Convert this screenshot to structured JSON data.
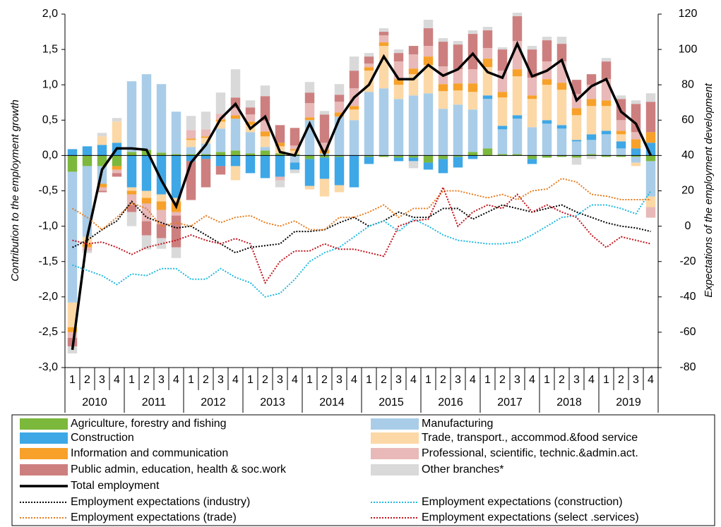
{
  "chart_data": {
    "type": "bar",
    "y_axis_label": "Contribution to the employment growth",
    "y2_axis_label": "Expectations of the employment development",
    "categories": [
      "1",
      "2",
      "3",
      "4",
      "1",
      "2",
      "3",
      "4",
      "1",
      "2",
      "3",
      "4",
      "1",
      "2",
      "3",
      "4",
      "1",
      "2",
      "3",
      "4",
      "1",
      "2",
      "3",
      "4",
      "1",
      "2",
      "3",
      "4",
      "1",
      "2",
      "3",
      "4",
      "1",
      "2",
      "3",
      "4",
      "1",
      "2",
      "3",
      "4"
    ],
    "groups": [
      "2010",
      "2011",
      "2012",
      "2013",
      "2014",
      "2015",
      "2016",
      "2017",
      "2018",
      "2019"
    ],
    "ylim": [
      -3,
      2
    ],
    "yticks": [
      {
        "value": -3,
        "label": "-3,0"
      },
      {
        "value": -2.5,
        "label": "-2,5"
      },
      {
        "value": -2,
        "label": "-2,0"
      },
      {
        "value": -1.5,
        "label": "-1,5"
      },
      {
        "value": -1,
        "label": "-1,0"
      },
      {
        "value": -0.5,
        "label": "-0,5"
      },
      {
        "value": 0,
        "label": "0,0"
      },
      {
        "value": 0.5,
        "label": "0,5"
      },
      {
        "value": 1,
        "label": "1,0"
      },
      {
        "value": 1.5,
        "label": "1,5"
      },
      {
        "value": 2,
        "label": "2,0"
      }
    ],
    "y2lim": [
      -80,
      120
    ],
    "y2ticks": [
      -80,
      -60,
      -40,
      -20,
      0,
      20,
      40,
      60,
      80,
      100,
      120
    ],
    "series": [
      {
        "name": "Agriculture, forestry and fishing",
        "type": "bar",
        "color": "#7cb83c",
        "values": [
          -0.23,
          -0.15,
          -0.15,
          -0.15,
          0.05,
          0.08,
          0.04,
          0.02,
          0.02,
          0.02,
          0.05,
          0.07,
          0.03,
          0.07,
          0.03,
          0.02,
          -0.05,
          -0.03,
          -0.02,
          0,
          -0.02,
          -0.02,
          -0.03,
          -0.03,
          -0.1,
          -0.05,
          -0.02,
          0.05,
          0.1,
          0.02,
          0.02,
          -0.05,
          -0.03,
          -0.02,
          -0.03,
          0.02,
          -0.02,
          -0.02,
          -0.02,
          -0.08
        ]
      },
      {
        "name": "Manufacturing",
        "type": "bar",
        "color": "#a9cde8",
        "values": [
          -1.85,
          -1,
          -0.25,
          0,
          1,
          1.07,
          0.97,
          0.6,
          0.1,
          0.15,
          0.33,
          0.45,
          0.3,
          0.05,
          0,
          -0.1,
          0.5,
          0.03,
          0.55,
          0.5,
          0.9,
          0.95,
          0.8,
          0.85,
          0.88,
          0.66,
          0.72,
          0.6,
          0.7,
          0.35,
          0.5,
          0.4,
          0.45,
          0.38,
          0.2,
          0.2,
          0.3,
          0.1,
          -0.08,
          -0.5
        ]
      },
      {
        "name": "Construction",
        "type": "bar",
        "color": "#3ea7e6",
        "values": [
          0.09,
          0.13,
          0.15,
          0.18,
          -0.45,
          -0.5,
          -0.55,
          -0.6,
          -0.08,
          -0.05,
          -0.15,
          -0.15,
          -0.25,
          -0.32,
          -0.3,
          -0.1,
          -0.38,
          -0.3,
          -0.4,
          -0.45,
          -0.1,
          0,
          -0.05,
          -0.05,
          -0.1,
          -0.2,
          -0.15,
          -0.05,
          0.05,
          0.05,
          0.05,
          -0.07,
          0.05,
          0.05,
          0.02,
          0.08,
          0.05,
          0.1,
          0.1,
          0.18
        ]
      },
      {
        "name": "Trade, transport., accommod.&food service",
        "type": "bar",
        "color": "#fcd8a6",
        "values": [
          -0.35,
          -0.1,
          0.12,
          0.3,
          -0.05,
          -0.1,
          -0.1,
          -0.05,
          0.1,
          0.08,
          0.1,
          -0.2,
          0.1,
          0.15,
          0.1,
          0.05,
          -0.05,
          -0.25,
          -0.1,
          0.15,
          0.3,
          0.6,
          0.2,
          0.3,
          0.4,
          0.25,
          0.2,
          0.25,
          0.4,
          0.4,
          0.55,
          0.4,
          0.5,
          0.5,
          0.35,
          0.4,
          0.35,
          0.1,
          -0.05,
          -0.15
        ]
      },
      {
        "name": "Information and communication",
        "type": "bar",
        "color": "#f7a12a",
        "values": [
          -0.07,
          -0.05,
          -0.05,
          -0.05,
          -0.05,
          -0.08,
          -0.12,
          -0.15,
          0.02,
          0.02,
          0.03,
          0.05,
          0.05,
          0.07,
          0.05,
          0.02,
          0.04,
          0.05,
          0.06,
          0.05,
          0.05,
          0.05,
          0.08,
          0.08,
          0.12,
          0.1,
          0.1,
          0.12,
          0.12,
          0.08,
          0.1,
          0.05,
          0.08,
          0.1,
          0.1,
          0.1,
          0.08,
          0.05,
          0.13,
          0.15
        ]
      },
      {
        "name": "Professional, scientific, technic.&admin.act.",
        "type": "bar",
        "color": "#e8b9b8",
        "values": [
          -0.08,
          -0.05,
          -0.05,
          -0.05,
          -0.15,
          -0.25,
          -0.2,
          -0.05,
          0.12,
          0.1,
          0.08,
          0.1,
          0.1,
          0.15,
          -0.05,
          0.05,
          0.2,
          0.1,
          0.15,
          0.25,
          0.05,
          0.1,
          0.25,
          0.2,
          0.15,
          0.25,
          0.2,
          0.2,
          0.15,
          0.3,
          0.4,
          0.25,
          0.25,
          0.3,
          0.2,
          0.2,
          0.3,
          0.15,
          0.1,
          -0.15
        ]
      },
      {
        "name": "Public admin, education, health & soc.work",
        "type": "bar",
        "color": "#cd7f7f",
        "values": [
          -0.12,
          0,
          -0.02,
          -0.05,
          -0.1,
          -0.2,
          -0.2,
          -0.45,
          -0.55,
          -0.4,
          -0.12,
          0.15,
          0.1,
          0.35,
          0.25,
          0.25,
          0.15,
          0.4,
          0.1,
          0.25,
          0.1,
          0.05,
          0.12,
          0.12,
          0.25,
          0.35,
          0.35,
          0.5,
          0.25,
          0.3,
          0.35,
          0.4,
          0.3,
          0.25,
          0.2,
          0.15,
          0.25,
          0.3,
          0.4,
          0.43
        ]
      },
      {
        "name": "Other branches*",
        "type": "bar",
        "color": "#d9d9d9",
        "values": [
          -0.1,
          -0.03,
          0.05,
          0.05,
          -0.2,
          -0.2,
          -0.15,
          -0.15,
          0.2,
          0.25,
          0.3,
          0.4,
          0.1,
          0.15,
          -0.1,
          -0.05,
          0.15,
          0.05,
          0.15,
          0.2,
          0.05,
          0.05,
          0.05,
          -0.1,
          0.12,
          0.05,
          0.05,
          0.05,
          0.05,
          0.03,
          0.05,
          0.05,
          0.05,
          0.1,
          -0.1,
          -0.05,
          0.05,
          0.05,
          0.05,
          0.12
        ]
      },
      {
        "name": "Total employment",
        "type": "line",
        "style": "solid",
        "color": "#000000",
        "values": [
          -2.75,
          -1.15,
          -0.2,
          0.1,
          0.1,
          0.08,
          -0.35,
          -0.72,
          -0.1,
          0.15,
          0.52,
          0.73,
          0.38,
          0.55,
          0.05,
          0,
          0.45,
          0.02,
          0.52,
          0.82,
          1,
          1.4,
          1.08,
          1.08,
          1.28,
          1.13,
          1.22,
          1.44,
          1.18,
          1.1,
          1.58,
          1.12,
          1.2,
          1.35,
          0.78,
          0.98,
          1.08,
          0.62,
          0.45,
          0
        ]
      },
      {
        "name": "Employment expectations (industry)",
        "type": "line",
        "style": "dotted",
        "axis": "y2",
        "color": "#000000",
        "values": [
          -12,
          -8,
          -2,
          3,
          14,
          5,
          2,
          -1,
          0,
          -5,
          -10,
          -15,
          -12,
          -11,
          -10,
          -3,
          -3,
          -2,
          2,
          5,
          0,
          3,
          8,
          5,
          5,
          10,
          10,
          4,
          8,
          12,
          10,
          8,
          10,
          12,
          8,
          5,
          2,
          0,
          -1,
          -3
        ]
      },
      {
        "name": "Employment expectations (construction)",
        "type": "line",
        "style": "dotted",
        "axis": "y2",
        "color": "#1fb8e0",
        "values": [
          -22,
          -25,
          -28,
          -33,
          -27,
          -28,
          -24,
          -24,
          -30,
          -30,
          -24,
          -29,
          -32,
          -40,
          -38,
          -30,
          -20,
          -15,
          -12,
          -6,
          0,
          3,
          -3,
          4,
          0,
          -5,
          -8,
          -9,
          -10,
          -10,
          -9,
          -5,
          0,
          5,
          6,
          12,
          12,
          10,
          7,
          20
        ]
      },
      {
        "name": "Employment expectations (trade)",
        "type": "line",
        "style": "dotted",
        "axis": "y2",
        "color": "#e87b1e",
        "values": [
          10,
          5,
          -2,
          5,
          13,
          10,
          0,
          2,
          0,
          6,
          2,
          5,
          6,
          2,
          0,
          3,
          -2,
          -2,
          5,
          5,
          8,
          12,
          5,
          10,
          10,
          20,
          20,
          18,
          16,
          18,
          15,
          20,
          21,
          27,
          25,
          18,
          17,
          15,
          15,
          15
        ]
      },
      {
        "name": "Employment expectations (select .services)",
        "type": "line",
        "style": "dotted",
        "axis": "y2",
        "color": "#c0141c",
        "values": [
          -8,
          -10,
          -9,
          -12,
          -16,
          -12,
          -10,
          -8,
          -5,
          -8,
          -10,
          -7,
          -10,
          -32,
          -20,
          -14,
          -14,
          -10,
          -13,
          -13,
          -15,
          -17,
          0,
          3,
          4,
          22,
          0,
          8,
          12,
          10,
          18,
          8,
          12,
          8,
          5,
          -5,
          -12,
          -6,
          -8,
          -10
        ]
      }
    ]
  }
}
